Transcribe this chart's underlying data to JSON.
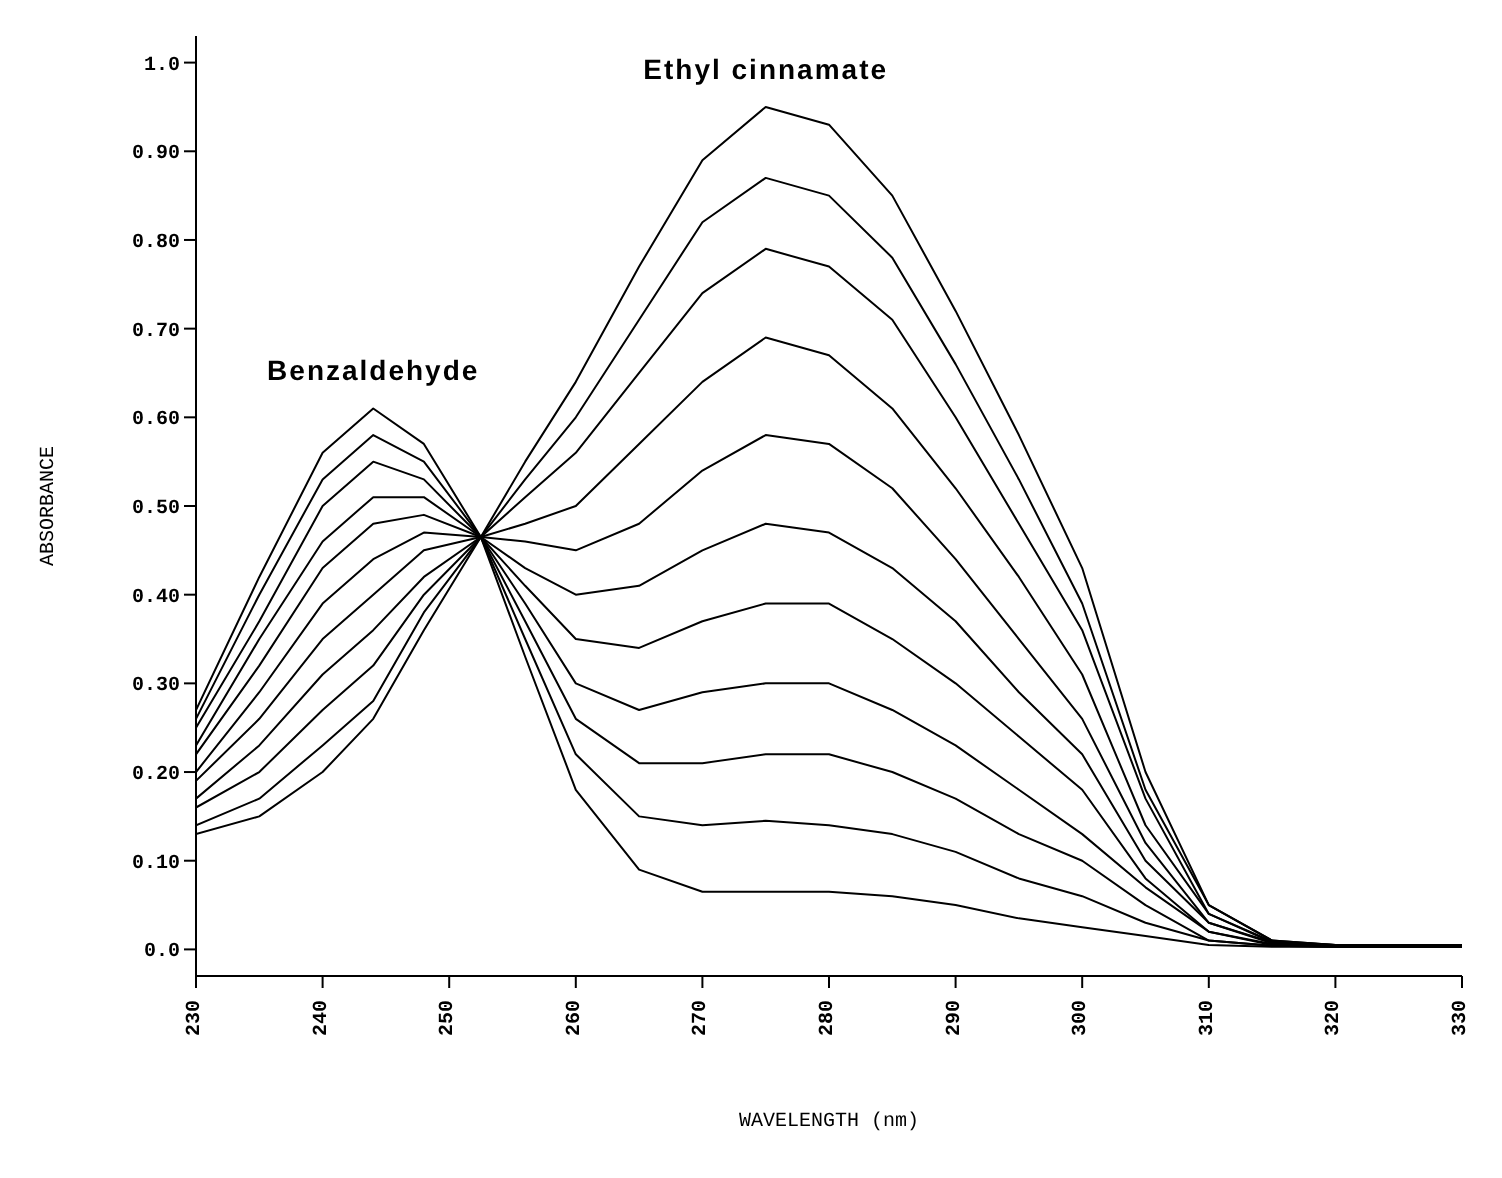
{
  "chart_data": {
    "type": "line",
    "xlabel": "WAVELENGTH (nm)",
    "ylabel": "ABSORBANCE",
    "x": [
      230,
      235,
      240,
      244,
      248,
      252.5,
      256,
      260,
      265,
      270,
      275,
      280,
      285,
      290,
      295,
      300,
      305,
      310,
      315,
      320,
      330
    ],
    "series": [
      {
        "color": "#000000",
        "values": [
          0.27,
          0.42,
          0.56,
          0.61,
          0.57,
          0.465,
          0.33,
          0.18,
          0.09,
          0.065,
          0.065,
          0.065,
          0.06,
          0.05,
          0.035,
          0.025,
          0.015,
          0.005,
          0.003,
          0.003,
          0.003
        ]
      },
      {
        "color": "#000000",
        "values": [
          0.26,
          0.4,
          0.53,
          0.58,
          0.55,
          0.465,
          0.35,
          0.22,
          0.15,
          0.14,
          0.145,
          0.14,
          0.13,
          0.11,
          0.08,
          0.06,
          0.03,
          0.01,
          0.004,
          0.003,
          0.003
        ]
      },
      {
        "color": "#000000",
        "values": [
          0.25,
          0.37,
          0.5,
          0.55,
          0.53,
          0.465,
          0.37,
          0.26,
          0.21,
          0.21,
          0.22,
          0.22,
          0.2,
          0.17,
          0.13,
          0.1,
          0.05,
          0.01,
          0.004,
          0.003,
          0.003
        ]
      },
      {
        "color": "#000000",
        "values": [
          0.23,
          0.35,
          0.46,
          0.51,
          0.51,
          0.465,
          0.39,
          0.3,
          0.27,
          0.29,
          0.3,
          0.3,
          0.27,
          0.23,
          0.18,
          0.13,
          0.07,
          0.02,
          0.005,
          0.003,
          0.003
        ]
      },
      {
        "color": "#000000",
        "values": [
          0.22,
          0.32,
          0.43,
          0.48,
          0.49,
          0.465,
          0.41,
          0.35,
          0.34,
          0.37,
          0.39,
          0.39,
          0.35,
          0.3,
          0.24,
          0.18,
          0.08,
          0.02,
          0.006,
          0.004,
          0.004
        ]
      },
      {
        "color": "#000000",
        "values": [
          0.2,
          0.29,
          0.39,
          0.44,
          0.47,
          0.465,
          0.43,
          0.4,
          0.41,
          0.45,
          0.48,
          0.47,
          0.43,
          0.37,
          0.29,
          0.22,
          0.1,
          0.03,
          0.007,
          0.004,
          0.004
        ]
      },
      {
        "color": "#000000",
        "values": [
          0.19,
          0.26,
          0.35,
          0.4,
          0.45,
          0.465,
          0.46,
          0.45,
          0.48,
          0.54,
          0.58,
          0.57,
          0.52,
          0.44,
          0.35,
          0.26,
          0.12,
          0.03,
          0.008,
          0.004,
          0.004
        ]
      },
      {
        "color": "#000000",
        "values": [
          0.17,
          0.23,
          0.31,
          0.36,
          0.42,
          0.465,
          0.48,
          0.5,
          0.57,
          0.64,
          0.69,
          0.67,
          0.61,
          0.52,
          0.42,
          0.31,
          0.14,
          0.04,
          0.008,
          0.004,
          0.004
        ]
      },
      {
        "color": "#000000",
        "values": [
          0.16,
          0.2,
          0.27,
          0.32,
          0.4,
          0.465,
          0.51,
          0.56,
          0.65,
          0.74,
          0.79,
          0.77,
          0.71,
          0.6,
          0.48,
          0.36,
          0.17,
          0.04,
          0.009,
          0.005,
          0.005
        ]
      },
      {
        "color": "#000000",
        "values": [
          0.14,
          0.17,
          0.23,
          0.28,
          0.38,
          0.465,
          0.53,
          0.6,
          0.71,
          0.82,
          0.87,
          0.85,
          0.78,
          0.66,
          0.53,
          0.39,
          0.18,
          0.05,
          0.01,
          0.005,
          0.005
        ]
      },
      {
        "color": "#000000",
        "values": [
          0.13,
          0.15,
          0.2,
          0.26,
          0.36,
          0.465,
          0.55,
          0.64,
          0.77,
          0.89,
          0.95,
          0.93,
          0.85,
          0.72,
          0.58,
          0.43,
          0.2,
          0.05,
          0.01,
          0.005,
          0.005
        ]
      }
    ],
    "xlim": [
      230,
      330
    ],
    "xticks": [
      230,
      240,
      250,
      260,
      270,
      280,
      290,
      300,
      310,
      320,
      330
    ],
    "ylim": [
      -0.03,
      1.03
    ],
    "yticks": [
      {
        "value": 0,
        "label": "0.0"
      },
      {
        "value": 0.1,
        "label": "0.10"
      },
      {
        "value": 0.2,
        "label": "0.20"
      },
      {
        "value": 0.3,
        "label": "0.30"
      },
      {
        "value": 0.4,
        "label": "0.40"
      },
      {
        "value": 0.5,
        "label": "0.50"
      },
      {
        "value": 0.6,
        "label": "0.60"
      },
      {
        "value": 0.7,
        "label": "0.70"
      },
      {
        "value": 0.8,
        "label": "0.80"
      },
      {
        "value": 0.9,
        "label": "0.90"
      },
      {
        "value": 1,
        "label": "1.0"
      }
    ],
    "annotations": [
      "Benzaldehyde",
      "Ethyl cinnamate"
    ],
    "grid": false,
    "legend": false,
    "marker": "none",
    "line_style": "solid"
  }
}
